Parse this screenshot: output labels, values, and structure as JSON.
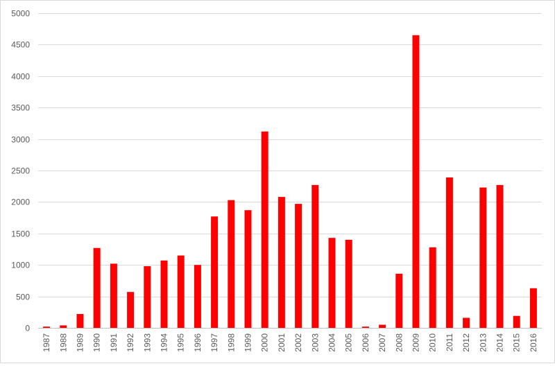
{
  "chart_data": {
    "type": "bar",
    "title": "",
    "xlabel": "",
    "ylabel": "",
    "ylim": [
      0,
      5000
    ],
    "yticks": [
      0,
      500,
      1000,
      1500,
      2000,
      2500,
      3000,
      3500,
      4000,
      4500,
      5000
    ],
    "grid": true,
    "legend": "none",
    "color": "#ff0000",
    "categories": [
      "1987",
      "1988",
      "1989",
      "1990",
      "1991",
      "1992",
      "1993",
      "1994",
      "1995",
      "1996",
      "1997",
      "1998",
      "1999",
      "2000",
      "2001",
      "2002",
      "2003",
      "2004",
      "2005",
      "2006",
      "2007",
      "2008",
      "2009",
      "2010",
      "2011",
      "2012",
      "2013",
      "2014",
      "2015",
      "2016"
    ],
    "values": [
      20,
      40,
      220,
      1270,
      1020,
      570,
      980,
      1070,
      1150,
      1000,
      1770,
      2030,
      1870,
      3120,
      2080,
      1970,
      2270,
      1430,
      1400,
      20,
      50,
      860,
      4650,
      1280,
      2390,
      160,
      2230,
      2270,
      190,
      630
    ]
  }
}
